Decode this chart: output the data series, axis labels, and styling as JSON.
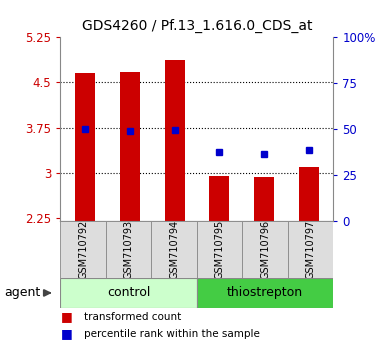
{
  "title": "GDS4260 / Pf.13_1.616.0_CDS_at",
  "samples": [
    "GSM710792",
    "GSM710793",
    "GSM710794",
    "GSM710795",
    "GSM710796",
    "GSM710797"
  ],
  "bar_values": [
    4.65,
    4.68,
    4.88,
    2.95,
    2.93,
    3.1
  ],
  "bar_bottom": 2.2,
  "dot_values_left": [
    3.73,
    3.7,
    3.72,
    3.35,
    3.32,
    3.38
  ],
  "bar_color": "#cc0000",
  "dot_color": "#0000cc",
  "ylim_left": [
    2.2,
    5.25
  ],
  "ylim_right": [
    0,
    100
  ],
  "yticks_left": [
    2.25,
    3.0,
    3.75,
    4.5,
    5.25
  ],
  "yticks_right": [
    0,
    25,
    50,
    75,
    100
  ],
  "ytick_labels_left": [
    "2.25",
    "3",
    "3.75",
    "4.5",
    "5.25"
  ],
  "ytick_labels_right": [
    "0",
    "25",
    "50",
    "75",
    "100%"
  ],
  "hlines": [
    3.0,
    3.75,
    4.5
  ],
  "groups": [
    {
      "label": "control",
      "span": [
        0,
        3
      ],
      "color": "#ccffcc",
      "border": "#888888"
    },
    {
      "label": "thiostrepton",
      "span": [
        3,
        6
      ],
      "color": "#44cc44",
      "border": "#888888"
    }
  ],
  "group_row_label": "agent",
  "legend_items": [
    {
      "label": "transformed count",
      "color": "#cc0000"
    },
    {
      "label": "percentile rank within the sample",
      "color": "#0000cc"
    }
  ],
  "background_color": "#ffffff",
  "bar_width": 0.45,
  "tick_label_color_left": "#cc0000",
  "tick_label_color_right": "#0000cc",
  "sample_bg_color": "#cccccc",
  "sample_cell_color": "#dddddd"
}
